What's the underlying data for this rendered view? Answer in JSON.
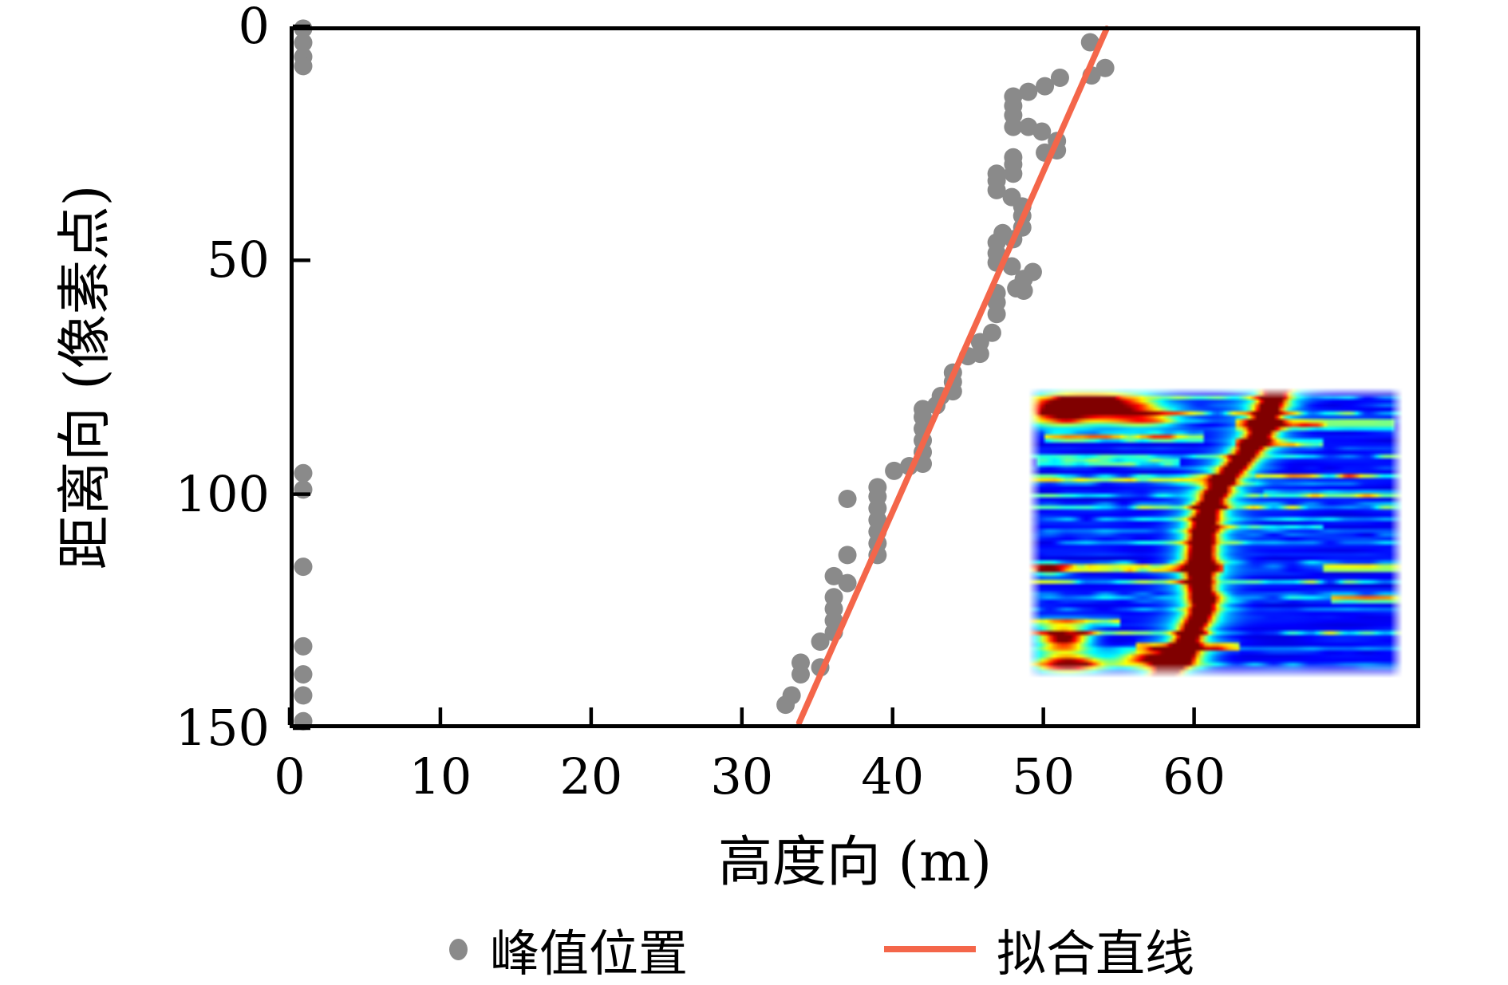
{
  "chart_data": {
    "type": "scatter",
    "title": "",
    "xlabel": "高度向 (m)",
    "ylabel": "距离向 (像素点)",
    "x_axis": {
      "range": [
        0,
        75
      ],
      "ticks": [
        0,
        10,
        20,
        30,
        40,
        50,
        60
      ],
      "grid": false
    },
    "y_axis": {
      "range": [
        0,
        150
      ],
      "ticks": [
        0,
        50,
        100,
        150
      ],
      "inverted": true,
      "grid": false
    },
    "legend_position": "bottom",
    "series": [
      {
        "name": "峰值位置",
        "type": "scatter",
        "marker": "circle",
        "color": "#8a8a8a",
        "points": [
          [
            0.9,
            0.5
          ],
          [
            0.9,
            3.5
          ],
          [
            0.9,
            6.5
          ],
          [
            0.9,
            8.5
          ],
          [
            0.9,
            95.5
          ],
          [
            0.9,
            99
          ],
          [
            0.9,
            115.5
          ],
          [
            0.9,
            132.5
          ],
          [
            0.9,
            138.5
          ],
          [
            0.9,
            143
          ],
          [
            0.9,
            148.5
          ],
          [
            32.9,
            145
          ],
          [
            33.3,
            143
          ],
          [
            33.9,
            138.5
          ],
          [
            33.9,
            136
          ],
          [
            35.2,
            137
          ],
          [
            35.2,
            131.5
          ],
          [
            36.1,
            129.5
          ],
          [
            36.1,
            127
          ],
          [
            36.1,
            124.5
          ],
          [
            36.1,
            122
          ],
          [
            36.1,
            117.5
          ],
          [
            37,
            119
          ],
          [
            37,
            113
          ],
          [
            37,
            101
          ],
          [
            39,
            113
          ],
          [
            39,
            110.5
          ],
          [
            39,
            108
          ],
          [
            39,
            105.5
          ],
          [
            39,
            103
          ],
          [
            39,
            100.5
          ],
          [
            39,
            98.5
          ],
          [
            40.1,
            95
          ],
          [
            41.1,
            94
          ],
          [
            42,
            93.5
          ],
          [
            42,
            91
          ],
          [
            42,
            88.5
          ],
          [
            42,
            86
          ],
          [
            42,
            83.5
          ],
          [
            42,
            81.8
          ],
          [
            42.9,
            81
          ],
          [
            43.2,
            79
          ],
          [
            44,
            78
          ],
          [
            44,
            76
          ],
          [
            44,
            74
          ],
          [
            45,
            70.5
          ],
          [
            45.8,
            70
          ],
          [
            45.8,
            67.5
          ],
          [
            46.6,
            65.5
          ],
          [
            46.9,
            61.5
          ],
          [
            46.9,
            59
          ],
          [
            46.9,
            57
          ],
          [
            48.2,
            56
          ],
          [
            48.7,
            56.5
          ],
          [
            48.7,
            54
          ],
          [
            49.3,
            52.5
          ],
          [
            47.9,
            51.3
          ],
          [
            46.9,
            50.5
          ],
          [
            46.9,
            48.5
          ],
          [
            46.9,
            46.2
          ],
          [
            47.3,
            44.2
          ],
          [
            48,
            45.5
          ],
          [
            48.6,
            43
          ],
          [
            48.6,
            40.5
          ],
          [
            48.6,
            38.5
          ],
          [
            47.9,
            36.5
          ],
          [
            46.9,
            35
          ],
          [
            46.9,
            33
          ],
          [
            46.9,
            31.5
          ],
          [
            48,
            31.5
          ],
          [
            48,
            29.5
          ],
          [
            48,
            28
          ],
          [
            50.1,
            27
          ],
          [
            50.9,
            26.5
          ],
          [
            50.9,
            24.5
          ],
          [
            49.9,
            22.5
          ],
          [
            49,
            21.5
          ],
          [
            48,
            21.5
          ],
          [
            48,
            19
          ],
          [
            48,
            17
          ],
          [
            48,
            15
          ],
          [
            49,
            14
          ],
          [
            50.1,
            12.8
          ],
          [
            51.1,
            11
          ],
          [
            53.2,
            10.5
          ],
          [
            54.1,
            8.9
          ],
          [
            53.1,
            3.4
          ]
        ]
      },
      {
        "name": "拟合直线",
        "type": "line",
        "color": "#f4664a",
        "points": [
          [
            33.8,
            148.8
          ],
          [
            54.2,
            0.5
          ]
        ]
      }
    ],
    "inset": {
      "name": "tomographic-slice",
      "type": "heatmap",
      "colormap": "jet",
      "x_range": [
        49.0,
        73.8
      ],
      "y_range": [
        77.2,
        139.3
      ],
      "description": "blurred jet-colormap intensity slice: deep blue background, bright red diagonal ridge rising left-bottom to right-top, red blobs top-left and bottom-left, scattered horizontal red/yellow streaks"
    }
  },
  "legend": {
    "items": [
      {
        "label": "峰值位置",
        "marker": "dot",
        "color": "#8a8a8a"
      },
      {
        "label": "拟合直线",
        "marker": "line",
        "color": "#f4664a"
      }
    ]
  },
  "style_colors": {
    "axis": "#000000",
    "background": "#ffffff"
  }
}
